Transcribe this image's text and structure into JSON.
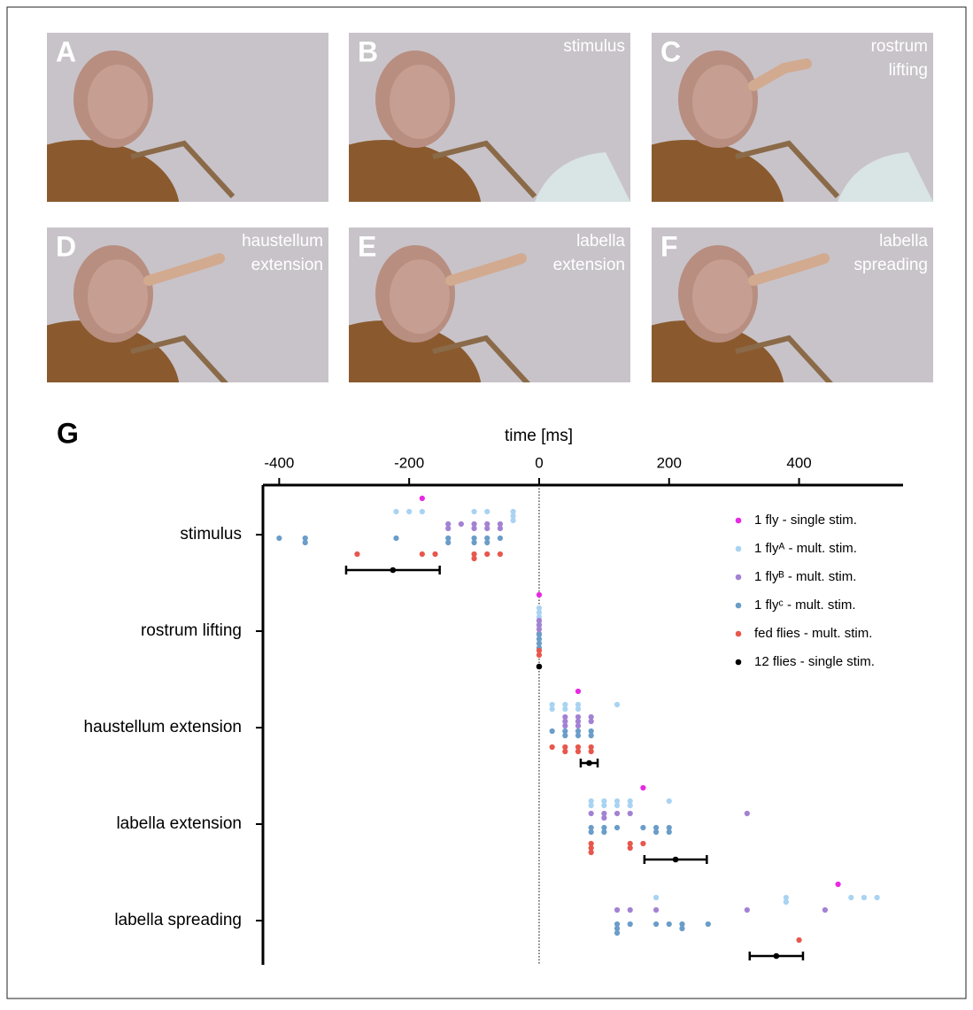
{
  "panels": [
    {
      "label": "A"
    },
    {
      "label": "B",
      "caption": [
        "stimulus"
      ]
    },
    {
      "label": "C",
      "caption": [
        "rostrum",
        "lifting"
      ]
    },
    {
      "label": "D",
      "caption": [
        "haustellum",
        "extension"
      ]
    },
    {
      "label": "E",
      "caption": [
        "labella",
        "extension"
      ]
    },
    {
      "label": "F",
      "caption": [
        "labella",
        "spreading"
      ]
    }
  ],
  "chart_data": {
    "type": "scatter",
    "panel_label": "G",
    "xlabel": "time [ms]",
    "categories": [
      "stimulus",
      "rostrum lifting",
      "haustellum extension",
      "labella extension",
      "labella spreading"
    ],
    "xlim": [
      -425,
      560
    ],
    "xticks": [
      -400,
      -200,
      0,
      200,
      400
    ],
    "series": [
      {
        "name": "1 fly - single stim.",
        "color": "#e829e3",
        "values": [
          [
            -180
          ],
          [
            0
          ],
          [
            60
          ],
          [
            160
          ],
          [
            460
          ]
        ]
      },
      {
        "name": "1 flyᴬ - mult. stim.",
        "color": "#a9d3f2",
        "values": [
          [
            -220,
            -200,
            -180,
            -100,
            -80,
            -40,
            -40,
            -40
          ],
          [
            0,
            0,
            0,
            0,
            0
          ],
          [
            20,
            20,
            40,
            40,
            60,
            60,
            120
          ],
          [
            80,
            80,
            100,
            100,
            120,
            120,
            140,
            140,
            200
          ],
          [
            180,
            380,
            380,
            480,
            500,
            520
          ]
        ]
      },
      {
        "name": "1 flyᴮ - mult. stim.",
        "color": "#a382d3",
        "values": [
          [
            -140,
            -140,
            -120,
            -100,
            -100,
            -80,
            -80,
            -60,
            -60
          ],
          [
            0,
            0,
            0,
            0
          ],
          [
            40,
            40,
            40,
            60,
            60,
            60,
            80,
            80
          ],
          [
            80,
            100,
            100,
            120,
            140,
            320
          ],
          [
            120,
            140,
            180,
            320,
            440
          ]
        ]
      },
      {
        "name": "1  flyᶜ - mult. stim.",
        "color": "#6a9dc9",
        "values": [
          [
            -400,
            -360,
            -360,
            -220,
            -140,
            -140,
            -100,
            -100,
            -80,
            -80,
            -60
          ],
          [
            0,
            0,
            0,
            0
          ],
          [
            20,
            40,
            40,
            60,
            60,
            80,
            80
          ],
          [
            80,
            80,
            100,
            100,
            120,
            160,
            180,
            180,
            200,
            200
          ],
          [
            120,
            120,
            120,
            140,
            180,
            200,
            220,
            220,
            260
          ]
        ]
      },
      {
        "name": "fed flies - mult. stim.",
        "color": "#e8574c",
        "values": [
          [
            -280,
            -180,
            -160,
            -100,
            -100,
            -80,
            -60
          ],
          [
            0,
            0
          ],
          [
            20,
            40,
            40,
            60,
            60,
            80,
            80
          ],
          [
            80,
            80,
            80,
            140,
            140,
            160
          ],
          [
            400
          ]
        ]
      },
      {
        "name": "12 flies - single stim.",
        "color": "#000000",
        "values": [
          -225,
          0,
          77,
          210,
          365
        ],
        "errors": [
          72,
          0,
          13,
          48,
          41
        ]
      }
    ]
  }
}
